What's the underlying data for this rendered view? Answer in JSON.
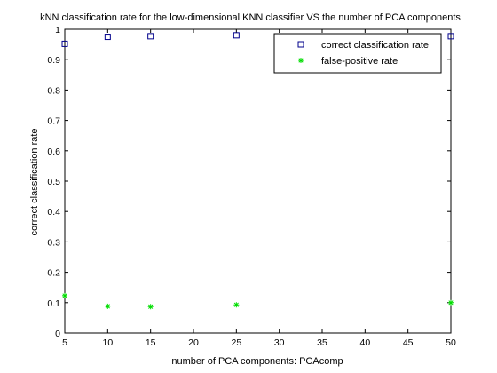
{
  "chart_data": {
    "type": "scatter",
    "title": "kNN classification rate for the low-dimensional KNN classifier VS the number of PCA components",
    "xlabel": "number of PCA components: PCAcomp",
    "ylabel": "correct classification rate",
    "xlim": [
      5,
      50
    ],
    "ylim": [
      0,
      1
    ],
    "xticks": [
      5,
      10,
      15,
      20,
      25,
      30,
      35,
      40,
      45,
      50
    ],
    "yticks": [
      0,
      0.1,
      0.2,
      0.3,
      0.4,
      0.5,
      0.6,
      0.7,
      0.8,
      0.9,
      1
    ],
    "x_tick_labels": [
      "5",
      "10",
      "15",
      "20",
      "25",
      "30",
      "35",
      "40",
      "45",
      "50"
    ],
    "y_tick_labels": [
      "0",
      "0.1",
      "0.2",
      "0.3",
      "0.4",
      "0.5",
      "0.6",
      "0.7",
      "0.8",
      "0.9",
      "1"
    ],
    "grid": false,
    "legend_position": "top-right",
    "series": [
      {
        "name": "correct classification rate",
        "marker": "square",
        "color": "#00008b",
        "x": [
          5,
          10,
          15,
          25,
          50
        ],
        "y": [
          0.952,
          0.975,
          0.977,
          0.98,
          0.977
        ]
      },
      {
        "name": "false-positive rate",
        "marker": "asterisk",
        "color": "#00dd00",
        "x": [
          5,
          10,
          15,
          25,
          50
        ],
        "y": [
          0.123,
          0.088,
          0.087,
          0.093,
          0.1
        ]
      }
    ]
  }
}
